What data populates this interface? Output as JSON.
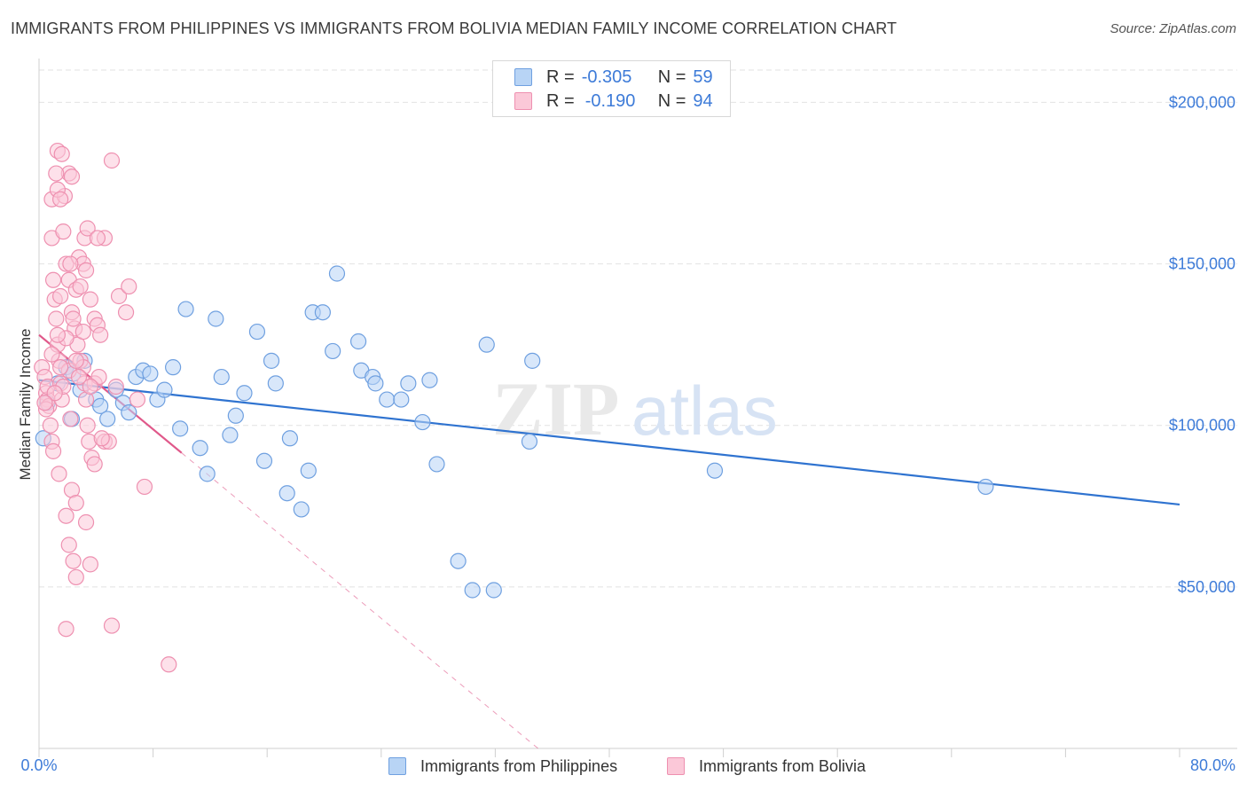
{
  "title": "IMMIGRANTS FROM PHILIPPINES VS IMMIGRANTS FROM BOLIVIA MEDIAN FAMILY INCOME CORRELATION CHART",
  "source": "Source: ZipAtlas.com",
  "watermark": {
    "zip": "ZIP",
    "atlas": "atlas"
  },
  "legend": {
    "r_label": "R =",
    "n_label": "N =",
    "rows": [
      {
        "r": "-0.305",
        "n": "59",
        "fill": "#b8d4f5",
        "stroke": "#6fa0e0"
      },
      {
        "r": "-0.190",
        "n": "94",
        "fill": "#fbc8d8",
        "stroke": "#ee90b0"
      }
    ]
  },
  "bottom_legend": [
    "Immigrants from Philippines",
    "Immigrants from Bolivia"
  ],
  "chart_data": {
    "type": "scatter",
    "title": "IMMIGRANTS FROM PHILIPPINES VS IMMIGRANTS FROM BOLIVIA MEDIAN FAMILY INCOME CORRELATION CHART",
    "xlabel": "",
    "ylabel": "Median Family Income",
    "xlim": [
      0,
      80
    ],
    "ylim": [
      0,
      210000
    ],
    "x_tick_labels": [
      "0.0%",
      "80.0%"
    ],
    "y_ticks": [
      {
        "value": 50000,
        "label": "$50,000"
      },
      {
        "value": 100000,
        "label": "$100,000"
      },
      {
        "value": 150000,
        "label": "$150,000"
      },
      {
        "value": 200000,
        "label": "$200,000"
      }
    ],
    "grid": "horizontal dashed",
    "legend_position": "top-center",
    "series": [
      {
        "name": "Immigrants from Philippines",
        "color": "#6fa0e0",
        "fill": "#b8d4f5",
        "line_color": "#2f73d0",
        "trend": {
          "x": [
            0,
            80
          ],
          "y": [
            114000,
            75500
          ]
        },
        "points": [
          [
            0.6,
            107000
          ],
          [
            1.3,
            113000
          ],
          [
            1.9,
            118000
          ],
          [
            3.2,
            120000
          ],
          [
            2.4,
            116000
          ],
          [
            2.9,
            111000
          ],
          [
            2.3,
            102000
          ],
          [
            4.0,
            108000
          ],
          [
            4.3,
            106000
          ],
          [
            4.8,
            102000
          ],
          [
            5.4,
            111000
          ],
          [
            5.9,
            107000
          ],
          [
            6.3,
            104000
          ],
          [
            6.8,
            115000
          ],
          [
            7.3,
            117000
          ],
          [
            7.8,
            116000
          ],
          [
            8.3,
            108000
          ],
          [
            8.8,
            111000
          ],
          [
            9.4,
            118000
          ],
          [
            9.9,
            99000
          ],
          [
            10.3,
            136000
          ],
          [
            11.3,
            93000
          ],
          [
            11.8,
            85000
          ],
          [
            12.4,
            133000
          ],
          [
            12.8,
            115000
          ],
          [
            13.4,
            97000
          ],
          [
            13.8,
            103000
          ],
          [
            14.4,
            110000
          ],
          [
            15.3,
            129000
          ],
          [
            15.8,
            89000
          ],
          [
            16.3,
            120000
          ],
          [
            16.6,
            113000
          ],
          [
            17.4,
            79000
          ],
          [
            17.6,
            96000
          ],
          [
            18.4,
            74000
          ],
          [
            18.9,
            86000
          ],
          [
            19.2,
            135000
          ],
          [
            19.9,
            135000
          ],
          [
            20.6,
            123000
          ],
          [
            20.9,
            147000
          ],
          [
            22.4,
            126000
          ],
          [
            22.6,
            117000
          ],
          [
            23.4,
            115000
          ],
          [
            23.6,
            113000
          ],
          [
            24.4,
            108000
          ],
          [
            25.4,
            108000
          ],
          [
            25.9,
            113000
          ],
          [
            26.9,
            101000
          ],
          [
            27.4,
            114000
          ],
          [
            27.9,
            88000
          ],
          [
            29.4,
            58000
          ],
          [
            30.4,
            49000
          ],
          [
            31.4,
            125000
          ],
          [
            31.9,
            49000
          ],
          [
            34.4,
            95000
          ],
          [
            34.6,
            120000
          ],
          [
            47.4,
            86000
          ],
          [
            66.4,
            81000
          ],
          [
            0.3,
            96000
          ]
        ]
      },
      {
        "name": "Immigrants from Bolivia",
        "color": "#ee90b0",
        "fill": "#fbc8d8",
        "line_color": "#e0588a",
        "trend": {
          "x": [
            0,
            10
          ],
          "y": [
            128000,
            91500
          ]
        },
        "trend_extension": {
          "x": [
            10,
            35
          ],
          "y": [
            91500,
            0
          ]
        },
        "points": [
          [
            0.2,
            118000
          ],
          [
            0.4,
            115000
          ],
          [
            0.5,
            110000
          ],
          [
            0.6,
            108000
          ],
          [
            0.7,
            106000
          ],
          [
            0.5,
            105000
          ],
          [
            0.8,
            100000
          ],
          [
            0.9,
            95000
          ],
          [
            1.0,
            92000
          ],
          [
            0.6,
            112000
          ],
          [
            0.9,
            170000
          ],
          [
            0.9,
            158000
          ],
          [
            1.0,
            145000
          ],
          [
            1.1,
            139000
          ],
          [
            1.2,
            133000
          ],
          [
            1.3,
            125000
          ],
          [
            1.4,
            120000
          ],
          [
            1.5,
            113000
          ],
          [
            1.6,
            108000
          ],
          [
            1.3,
            185000
          ],
          [
            1.6,
            184000
          ],
          [
            1.8,
            171000
          ],
          [
            2.1,
            178000
          ],
          [
            2.3,
            177000
          ],
          [
            1.2,
            178000
          ],
          [
            1.3,
            173000
          ],
          [
            1.5,
            170000
          ],
          [
            1.7,
            160000
          ],
          [
            1.9,
            150000
          ],
          [
            2.1,
            145000
          ],
          [
            2.3,
            135000
          ],
          [
            2.5,
            130000
          ],
          [
            2.7,
            125000
          ],
          [
            2.9,
            120000
          ],
          [
            3.1,
            118000
          ],
          [
            3.2,
            113000
          ],
          [
            3.3,
            108000
          ],
          [
            3.4,
            100000
          ],
          [
            3.5,
            95000
          ],
          [
            3.7,
            90000
          ],
          [
            2.6,
            142000
          ],
          [
            2.8,
            152000
          ],
          [
            3.1,
            150000
          ],
          [
            3.3,
            148000
          ],
          [
            3.6,
            139000
          ],
          [
            3.9,
            133000
          ],
          [
            4.1,
            131000
          ],
          [
            4.3,
            128000
          ],
          [
            3.2,
            158000
          ],
          [
            3.4,
            161000
          ],
          [
            4.6,
            158000
          ],
          [
            4.1,
            158000
          ],
          [
            5.1,
            182000
          ],
          [
            5.6,
            140000
          ],
          [
            6.1,
            135000
          ],
          [
            6.3,
            143000
          ],
          [
            6.9,
            108000
          ],
          [
            7.4,
            81000
          ],
          [
            5.4,
            112000
          ],
          [
            4.6,
            95000
          ],
          [
            4.9,
            95000
          ],
          [
            3.3,
            70000
          ],
          [
            2.3,
            80000
          ],
          [
            2.6,
            76000
          ],
          [
            1.9,
            72000
          ],
          [
            2.1,
            63000
          ],
          [
            2.4,
            58000
          ],
          [
            2.6,
            53000
          ],
          [
            3.6,
            57000
          ],
          [
            1.4,
            85000
          ],
          [
            5.1,
            38000
          ],
          [
            1.9,
            37000
          ],
          [
            9.1,
            26000
          ],
          [
            1.7,
            112000
          ],
          [
            1.9,
            127000
          ],
          [
            2.1,
            117000
          ],
          [
            1.5,
            118000
          ],
          [
            0.9,
            122000
          ],
          [
            1.1,
            110000
          ],
          [
            0.4,
            107000
          ],
          [
            2.2,
            150000
          ],
          [
            2.8,
            115000
          ],
          [
            3.9,
            113000
          ],
          [
            1.5,
            140000
          ],
          [
            2.2,
            102000
          ],
          [
            2.6,
            120000
          ],
          [
            3.9,
            88000
          ],
          [
            4.2,
            115000
          ],
          [
            1.3,
            128000
          ],
          [
            2.4,
            133000
          ],
          [
            2.9,
            143000
          ],
          [
            3.1,
            129000
          ],
          [
            4.4,
            96000
          ],
          [
            3.6,
            112000
          ]
        ]
      }
    ]
  }
}
